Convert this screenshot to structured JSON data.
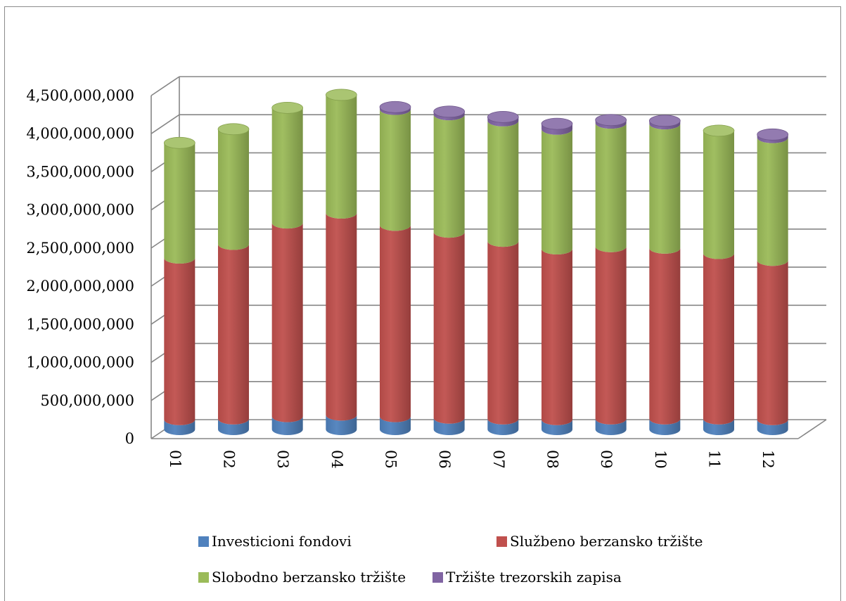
{
  "chart_data": {
    "type": "bar",
    "stacked": true,
    "style": "3d-cylinder",
    "categories": [
      "01",
      "02",
      "03",
      "04",
      "05",
      "06",
      "07",
      "08",
      "09",
      "10",
      "11",
      "12"
    ],
    "series": [
      {
        "name": "Investicioni fondovi",
        "color": "#4f81bd",
        "values": [
          130000000,
          140000000,
          170000000,
          190000000,
          170000000,
          150000000,
          140000000,
          130000000,
          140000000,
          140000000,
          140000000,
          130000000
        ]
      },
      {
        "name": "Službeno berzansko tržište",
        "color": "#c0504d",
        "values": [
          2120000000,
          2290000000,
          2540000000,
          2650000000,
          2510000000,
          2440000000,
          2330000000,
          2240000000,
          2260000000,
          2240000000,
          2170000000,
          2090000000
        ]
      },
      {
        "name": "Slobodno berzansko tržište",
        "color": "#9bbb59",
        "values": [
          1510000000,
          1510000000,
          1510000000,
          1550000000,
          1520000000,
          1540000000,
          1580000000,
          1570000000,
          1620000000,
          1630000000,
          1610000000,
          1610000000
        ]
      },
      {
        "name": "Tržište trezorskih zapisa",
        "color": "#8064a2",
        "values": [
          0,
          0,
          0,
          0,
          30000000,
          40000000,
          50000000,
          70000000,
          40000000,
          40000000,
          0,
          40000000
        ]
      }
    ],
    "y_ticks": [
      "0",
      "500,000,000",
      "1,000,000,000",
      "1,500,000,000",
      "2,000,000,000",
      "2,500,000,000",
      "3,000,000,000",
      "3,500,000,000",
      "4,000,000,000",
      "4,500,000,000"
    ],
    "ylim": [
      0,
      4500000000
    ],
    "title": "",
    "xlabel": "",
    "ylabel": "",
    "grid": true,
    "legend_position": "bottom"
  }
}
